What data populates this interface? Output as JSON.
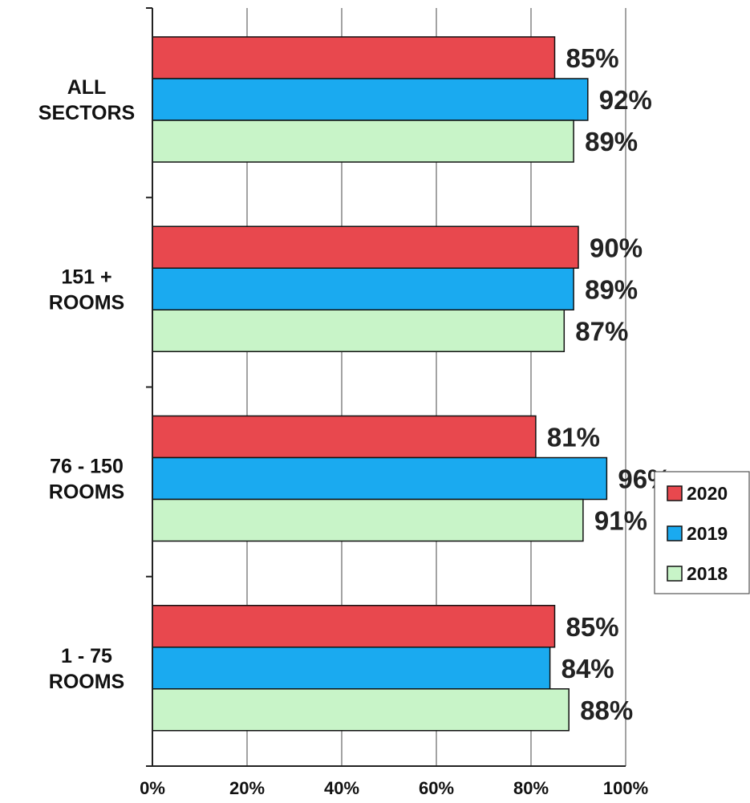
{
  "chart_data": {
    "type": "bar",
    "orientation": "horizontal",
    "categories": [
      "ALL SECTORS",
      "151 + ROOMS",
      "76 - 150 ROOMS",
      "1 - 75 ROOMS"
    ],
    "category_lines": [
      [
        "ALL",
        "SECTORS"
      ],
      [
        "151 +",
        "ROOMS"
      ],
      [
        "76 - 150",
        "ROOMS"
      ],
      [
        "1 - 75",
        "ROOMS"
      ]
    ],
    "series": [
      {
        "name": "2020",
        "color": "#e8484e",
        "values": [
          85,
          90,
          81,
          85
        ]
      },
      {
        "name": "2019",
        "color": "#1aaaf0",
        "values": [
          92,
          89,
          96,
          84
        ]
      },
      {
        "name": "2018",
        "color": "#c8f4c8",
        "values": [
          89,
          87,
          91,
          88
        ]
      }
    ],
    "data_label_suffix": "%",
    "xlim": [
      0,
      100
    ],
    "x_ticks": [
      "0%",
      "20%",
      "40%",
      "60%",
      "80%",
      "100%"
    ],
    "grid": "vertical",
    "legend": "right"
  }
}
